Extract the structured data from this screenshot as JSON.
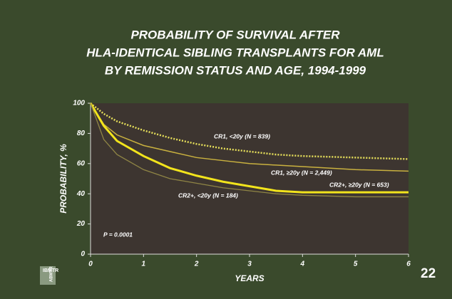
{
  "chart_data": {
    "type": "line",
    "title": [
      "PROBABILITY OF SURVIVAL AFTER",
      "HLA-IDENTICAL SIBLING TRANSPLANTS FOR AML",
      "BY REMISSION STATUS AND AGE, 1994-1999"
    ],
    "x_label": "YEARS",
    "y_label": "PROBABILITY, %",
    "annotation": "P = 0.0001",
    "x": [
      0,
      0.25,
      0.5,
      1,
      1.5,
      2,
      2.5,
      3,
      3.5,
      4,
      5,
      6
    ],
    "series": [
      {
        "name": "CR1, <20y (N = 839)",
        "color": "#e6df5a",
        "values": [
          100,
          93,
          88,
          82,
          77,
          73,
          70,
          68,
          66,
          65,
          64,
          63
        ]
      },
      {
        "name": "CR1, ≥20y (N = 2,449)",
        "color": "#c9b13f",
        "values": [
          100,
          86,
          79,
          72,
          68,
          64,
          62,
          60,
          59,
          58,
          56,
          55
        ]
      },
      {
        "name": "CR2+, ≥20y (N = 653)",
        "color": "#f2e41c",
        "values": [
          100,
          85,
          75,
          65,
          57,
          52,
          48,
          45,
          42,
          41,
          41,
          41
        ]
      },
      {
        "name": "CR2+, <20y (N = 184)",
        "color": "#8f8545",
        "values": [
          100,
          76,
          66,
          56,
          50,
          47,
          44,
          42,
          40,
          39,
          38,
          38
        ]
      }
    ],
    "xlim": [
      0,
      6
    ],
    "xticks": [
      0,
      1,
      2,
      3,
      4,
      5,
      6
    ],
    "ylim": [
      0,
      100
    ],
    "yticks": [
      0,
      20,
      40,
      60,
      80,
      100
    ],
    "page_number": "22",
    "logo": [
      "IBMTR",
      "ABMTR"
    ]
  }
}
